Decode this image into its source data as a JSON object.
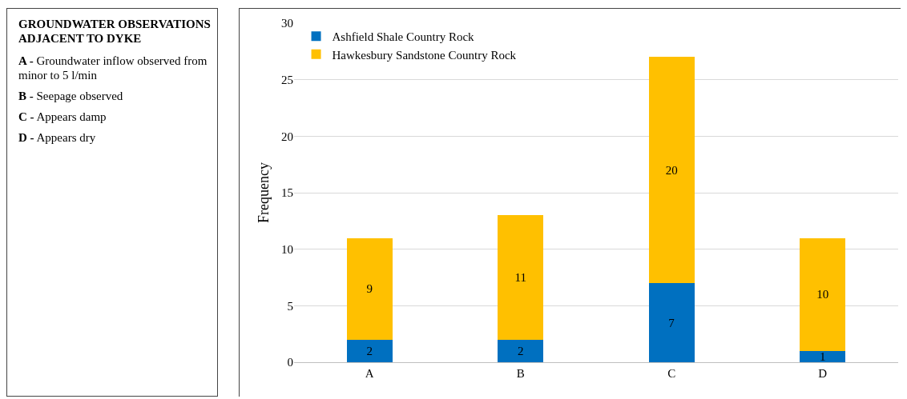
{
  "chart_data": [
    {
      "type": "other",
      "title": "GROUNDWATER OBSERVATIONS ADJACENT TO DYKE",
      "annotations": [
        "A - Groundwater inflow observed from minor to 5 l/min",
        "B - Seepage observed",
        "C - Appears damp",
        "D - Appears dry"
      ]
    },
    {
      "type": "bar",
      "stacked": true,
      "categories": [
        "A",
        "B",
        "C",
        "D"
      ],
      "ylabel": "Frequency",
      "ylim": [
        0,
        30
      ],
      "yticks": [
        0,
        5,
        10,
        15,
        20,
        25,
        30
      ],
      "grid": "y",
      "legend": "top left",
      "data_labels": true,
      "series": [
        {
          "name": "Ashfield Shale Country Rock",
          "color": "#0070c0",
          "values": [
            2,
            2,
            7,
            1
          ]
        },
        {
          "name": "Hawkesbury Sandstone Country Rock",
          "color": "#ffc000",
          "values": [
            9,
            11,
            20,
            10
          ]
        }
      ]
    }
  ]
}
